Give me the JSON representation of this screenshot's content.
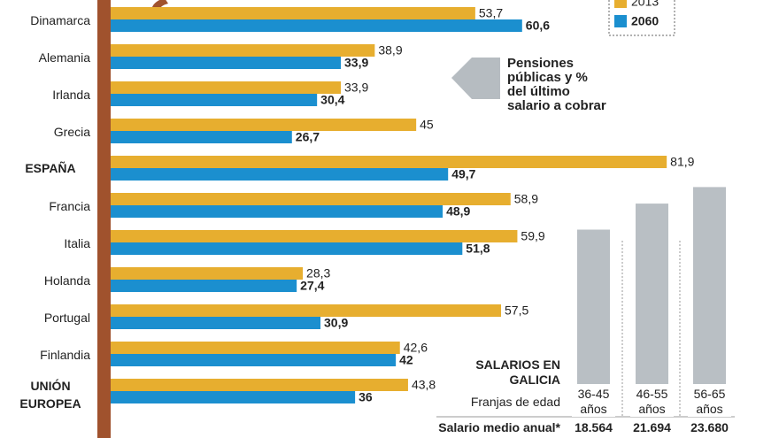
{
  "chart_data": [
    {
      "type": "bar",
      "orientation": "horizontal",
      "annotation": [
        "Pensiones",
        "públicas y %",
        "del último",
        "salario a cobrar"
      ],
      "categories": [
        "Dinamarca",
        "Alemania",
        "Irlanda",
        "Grecia",
        "ESPAÑA",
        "Francia",
        "Italia",
        "Holanda",
        "Portugal",
        "Finlandia",
        "UNIÓN EUROPEA"
      ],
      "bold_categories": [
        4,
        10
      ],
      "series": [
        {
          "name": "2013",
          "color": "#e7ae2f",
          "values": [
            53.7,
            38.9,
            33.9,
            45,
            81.9,
            58.9,
            59.9,
            28.3,
            57.5,
            42.6,
            43.8
          ],
          "value_labels": [
            "53,7",
            "38,9",
            "33,9",
            "45",
            "81,9",
            "58,9",
            "59,9",
            "28,3",
            "57,5",
            "42,6",
            "43,8"
          ]
        },
        {
          "name": "2060",
          "color": "#1b8fcf",
          "values": [
            60.6,
            33.9,
            30.4,
            26.7,
            49.7,
            48.9,
            51.8,
            27.4,
            30.9,
            42,
            36
          ],
          "value_labels": [
            "60,6",
            "33,9",
            "30,4",
            "26,7",
            "49,7",
            "48,9",
            "51,8",
            "27,4",
            "30,9",
            "42",
            "36"
          ]
        }
      ],
      "legend": "top-right"
    },
    {
      "type": "bar",
      "orientation": "vertical",
      "title": "SALARIOS EN GALICIA",
      "x_label": "Franjas de edad",
      "value_title": "Salario medio anual*",
      "categories": [
        "36-45 años",
        "46-55 años",
        "56-65 años"
      ],
      "values": [
        18564,
        21694,
        23680
      ],
      "value_labels": [
        "18.564",
        "21.694",
        "23.680"
      ],
      "color": "#b9bfc4"
    }
  ]
}
